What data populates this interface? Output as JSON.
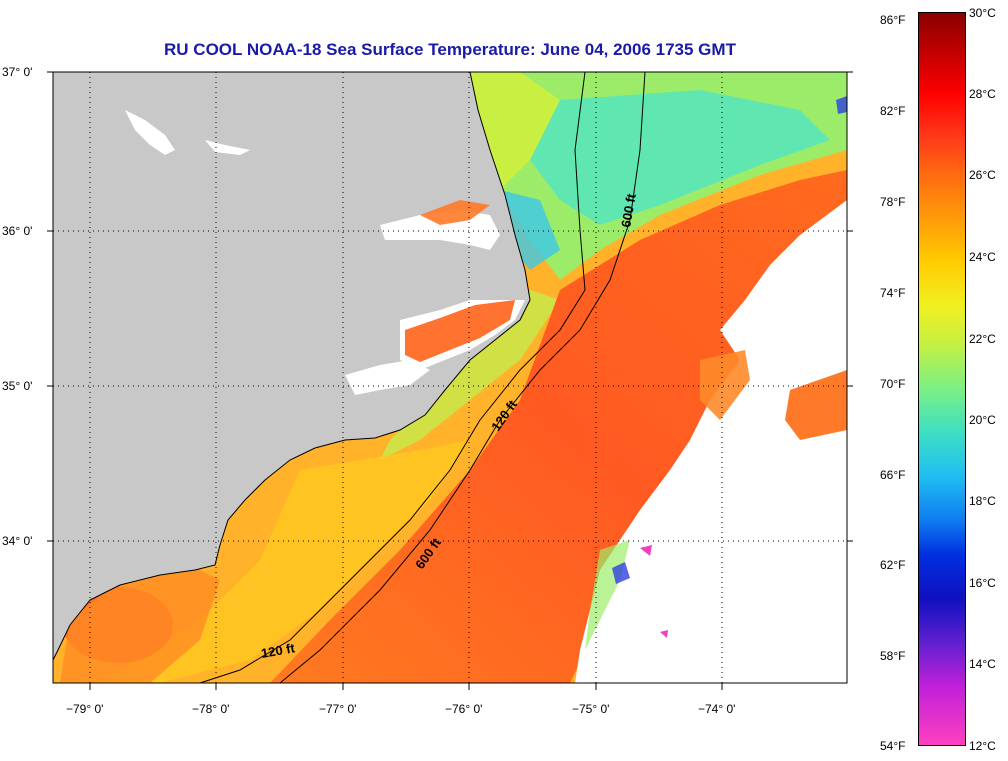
{
  "title": "RU COOL  NOAA-18  Sea Surface Temperature:  June 04, 2006 1735 GMT",
  "lat_labels": [
    "37° 0'",
    "36° 0'",
    "35° 0'",
    "34° 0'"
  ],
  "lon_labels": [
    "−79° 0'",
    "−78° 0'",
    "−77° 0'",
    "−76° 0'",
    "−75° 0'",
    "−74° 0'"
  ],
  "isobath_labels": {
    "deep_north": "600 ft",
    "shallow_mid": "120 ft",
    "deep_south": "600 ft",
    "shallow_south": "120 ft"
  },
  "colorbar": {
    "fahrenheit": [
      "86°F",
      "82°F",
      "78°F",
      "74°F",
      "70°F",
      "66°F",
      "62°F",
      "58°F",
      "54°F"
    ],
    "celsius": [
      "30°C",
      "28°C",
      "26°C",
      "24°C",
      "22°C",
      "20°C",
      "18°C",
      "16°C",
      "14°C",
      "12°C"
    ]
  },
  "colors": {
    "land": "#c8c8c8",
    "title": "#1a1aa8",
    "gulf_stream": "#ff6420",
    "shelf_water": "#ffb41e",
    "cool_water": "#78f08c",
    "cloud": "#ffffff"
  }
}
